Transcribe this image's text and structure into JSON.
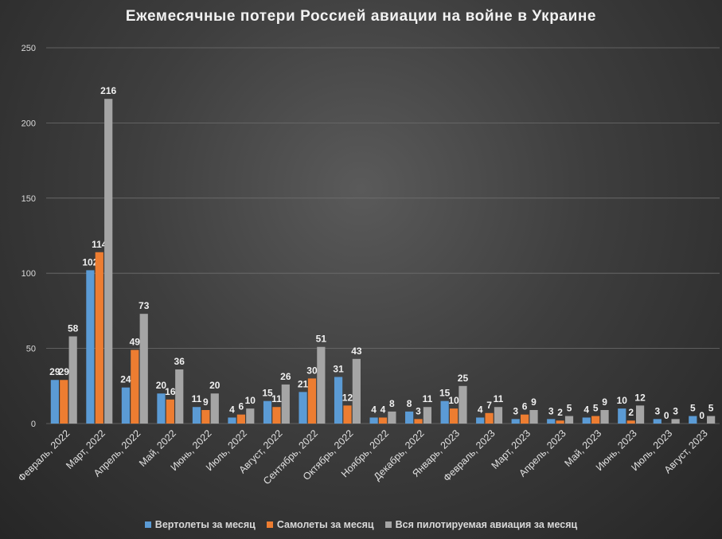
{
  "chart_data": {
    "type": "bar",
    "title": "Ежемесячные  потери Россией авиации на войне в Украине",
    "categories": [
      "Февраль, 2022",
      "Март, 2022",
      "Апрель, 2022",
      "Май, 2022",
      "Июнь, 2022",
      "Июль, 2022",
      "Август, 2022",
      "Сентябрь, 2022",
      "Октябрь, 2022",
      "Ноябрь, 2022",
      "Декабрь, 2022",
      "Январь, 2023",
      "Февраль, 2023",
      "Март, 2023",
      "Апрель, 2023",
      "Май, 2023",
      "Июнь, 2023",
      "Июль, 2023",
      "Август, 2023"
    ],
    "series": [
      {
        "name": "Вертолеты за месяц",
        "color": "#5b9bd5",
        "values": [
          29,
          102,
          24,
          20,
          11,
          4,
          15,
          21,
          31,
          4,
          8,
          15,
          4,
          3,
          3,
          4,
          10,
          3,
          5
        ]
      },
      {
        "name": "Самолеты за месяц",
        "color": "#ed7d31",
        "values": [
          29,
          114,
          49,
          16,
          9,
          6,
          11,
          30,
          12,
          4,
          3,
          10,
          7,
          6,
          2,
          5,
          2,
          0,
          0
        ]
      },
      {
        "name": "Вся пилотируемая авиация за месяц",
        "color": "#a5a5a5",
        "values": [
          58,
          216,
          73,
          36,
          20,
          10,
          26,
          51,
          43,
          8,
          11,
          25,
          11,
          9,
          5,
          9,
          12,
          3,
          5
        ]
      }
    ],
    "yticks": [
      0,
      50,
      100,
      150,
      200,
      250
    ],
    "ylim": [
      0,
      250
    ],
    "xlabel": "",
    "ylabel": "",
    "grid": true,
    "legend_position": "bottom",
    "data_labels": true
  }
}
